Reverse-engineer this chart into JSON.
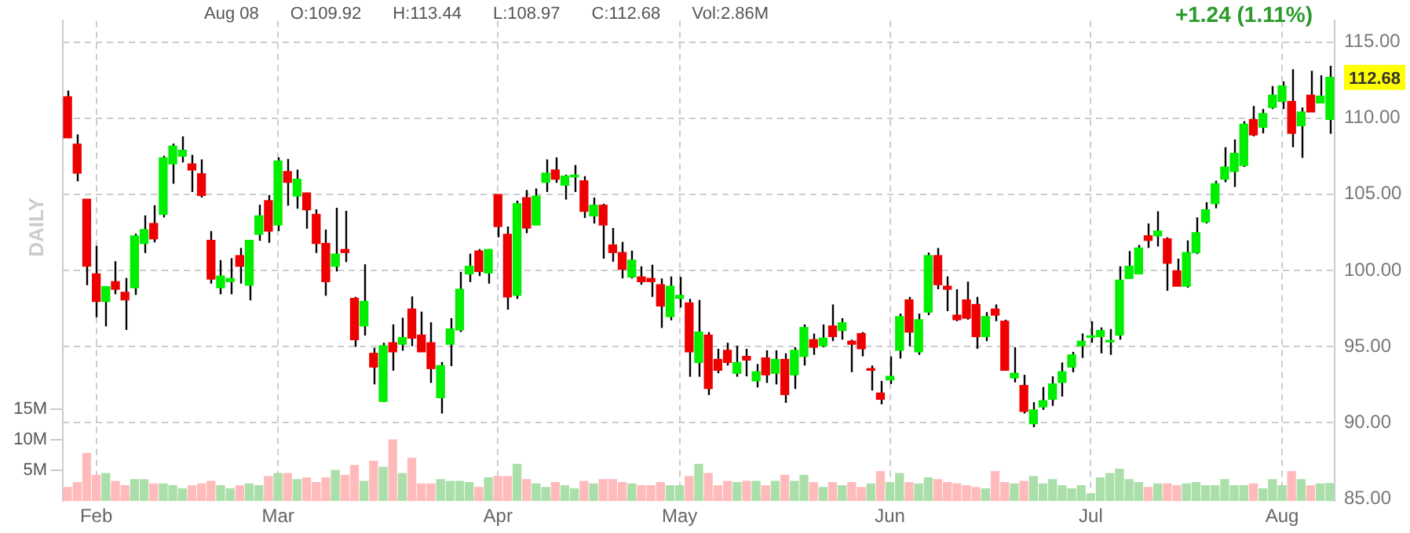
{
  "chart_data": {
    "type": "candlestick",
    "annotations": [
      "Aug 08",
      "O:109.92",
      "H:113.44",
      "L:108.97",
      "C:112.68",
      "Vol:2.86M",
      "+1.24 (1.11%)",
      "DAILY",
      "112.68"
    ],
    "categories": [
      null,
      null,
      null,
      "Feb",
      null,
      null,
      null,
      null,
      null,
      null,
      null,
      null,
      null,
      null,
      null,
      null,
      null,
      null,
      null,
      null,
      null,
      null,
      "Mar",
      null,
      null,
      null,
      null,
      null,
      null,
      null,
      null,
      null,
      null,
      null,
      null,
      null,
      null,
      null,
      null,
      null,
      null,
      null,
      null,
      null,
      null,
      "Apr",
      null,
      null,
      null,
      null,
      null,
      null,
      null,
      null,
      null,
      null,
      null,
      null,
      null,
      null,
      null,
      null,
      null,
      null,
      "May",
      null,
      null,
      null,
      null,
      null,
      null,
      null,
      null,
      null,
      null,
      null,
      null,
      null,
      null,
      null,
      null,
      null,
      null,
      null,
      null,
      null,
      "Jun",
      null,
      null,
      null,
      null,
      null,
      null,
      null,
      null,
      null,
      null,
      null,
      null,
      null,
      null,
      null,
      null,
      null,
      null,
      null,
      null,
      "Jul",
      null,
      null,
      null,
      null,
      null,
      null,
      null,
      null,
      null,
      null,
      null,
      null,
      null,
      null,
      null,
      null,
      null,
      null,
      null,
      "Aug",
      null,
      null,
      null,
      null,
      null
    ],
    "ohlc": [
      [
        111.4,
        111.81,
        108.7,
        108.7
      ],
      [
        108.29,
        108.93,
        105.85,
        106.39
      ],
      [
        104.68,
        104.68,
        99.03,
        100.27
      ],
      [
        99.77,
        101.61,
        96.92,
        97.96
      ],
      [
        97.96,
        98.93,
        96.32,
        98.93
      ],
      [
        99.26,
        100.6,
        98.43,
        98.76
      ],
      [
        98.56,
        99.5,
        96.09,
        98.06
      ],
      [
        98.86,
        102.41,
        98.39,
        102.27
      ],
      [
        101.77,
        103.61,
        101.14,
        102.68
      ],
      [
        103.08,
        104.28,
        101.84,
        102.07
      ],
      [
        103.68,
        107.53,
        103.48,
        107.39
      ],
      [
        106.99,
        108.33,
        105.69,
        108.16
      ],
      [
        107.49,
        108.8,
        107.09,
        107.89
      ],
      [
        106.99,
        107.59,
        105.15,
        106.59
      ],
      [
        106.35,
        107.29,
        104.78,
        104.92
      ],
      [
        101.97,
        102.58,
        99.13,
        99.43
      ],
      [
        98.86,
        100.67,
        98.43,
        99.63
      ],
      [
        99.26,
        100.8,
        98.43,
        99.47
      ],
      [
        100.97,
        101.47,
        99.13,
        100.27
      ],
      [
        99.03,
        101.97,
        98.03,
        101.97
      ],
      [
        102.37,
        104.31,
        101.94,
        103.58
      ],
      [
        104.58,
        104.95,
        101.81,
        102.58
      ],
      [
        102.98,
        107.42,
        102.58,
        107.19
      ],
      [
        106.49,
        107.32,
        104.25,
        105.79
      ],
      [
        104.88,
        106.62,
        104.05,
        105.99
      ],
      [
        105.08,
        105.08,
        102.74,
        103.98
      ],
      [
        103.68,
        104.01,
        101.14,
        101.77
      ],
      [
        101.77,
        102.68,
        98.33,
        99.26
      ],
      [
        100.27,
        104.11,
        99.93,
        101.07
      ],
      [
        101.37,
        103.91,
        100.54,
        101.17
      ],
      [
        98.16,
        98.26,
        94.98,
        95.45
      ],
      [
        96.35,
        100.4,
        95.72,
        97.96
      ],
      [
        94.55,
        94.92,
        92.51,
        93.65
      ],
      [
        91.4,
        95.25,
        91.34,
        95.05
      ],
      [
        95.25,
        96.45,
        93.41,
        94.65
      ],
      [
        95.15,
        96.89,
        94.72,
        95.59
      ],
      [
        97.46,
        98.29,
        95.02,
        95.55
      ],
      [
        95.75,
        97.29,
        94.65,
        94.65
      ],
      [
        95.25,
        96.59,
        92.61,
        93.55
      ],
      [
        91.64,
        93.98,
        90.6,
        93.75
      ],
      [
        95.15,
        96.86,
        93.71,
        96.15
      ],
      [
        96.09,
        99.9,
        95.95,
        98.76
      ],
      [
        99.77,
        101.1,
        99.23,
        100.27
      ],
      [
        101.27,
        101.4,
        99.63,
        99.93
      ],
      [
        99.83,
        101.4,
        99.13,
        101.37
      ],
      [
        104.98,
        104.98,
        102.17,
        102.88
      ],
      [
        102.37,
        102.88,
        97.42,
        98.26
      ],
      [
        98.36,
        104.58,
        98.13,
        104.38
      ],
      [
        104.78,
        105.28,
        102.44,
        102.78
      ],
      [
        102.98,
        105.38,
        102.98,
        104.88
      ],
      [
        105.79,
        107.29,
        105.15,
        106.39
      ],
      [
        106.59,
        107.42,
        105.75,
        105.99
      ],
      [
        105.59,
        106.29,
        104.65,
        106.19
      ],
      [
        106.15,
        106.92,
        105.15,
        106.25
      ],
      [
        105.89,
        106.19,
        103.44,
        103.88
      ],
      [
        103.58,
        104.78,
        103.08,
        104.28
      ],
      [
        104.28,
        104.38,
        100.77,
        102.98
      ],
      [
        101.67,
        102.78,
        100.57,
        101.17
      ],
      [
        101.17,
        101.87,
        99.47,
        100.07
      ],
      [
        99.57,
        101.3,
        99.47,
        100.67
      ],
      [
        99.57,
        100.27,
        99.06,
        99.26
      ],
      [
        99.47,
        100.37,
        98.26,
        99.26
      ],
      [
        99.06,
        99.47,
        96.22,
        97.66
      ],
      [
        96.96,
        99.6,
        96.72,
        98.96
      ],
      [
        98.16,
        99.57,
        97.56,
        98.36
      ],
      [
        97.86,
        98.13,
        93.01,
        94.65
      ],
      [
        93.95,
        98.06,
        93.01,
        95.95
      ],
      [
        95.75,
        95.95,
        91.81,
        92.24
      ],
      [
        94.15,
        94.85,
        93.24,
        93.44
      ],
      [
        94.75,
        95.25,
        93.75,
        93.95
      ],
      [
        93.24,
        95.05,
        93.01,
        93.95
      ],
      [
        94.35,
        94.85,
        93.04,
        94.11
      ],
      [
        92.74,
        93.85,
        92.31,
        93.34
      ],
      [
        94.25,
        94.75,
        92.61,
        93.14
      ],
      [
        93.24,
        94.75,
        92.51,
        94.15
      ],
      [
        94.15,
        94.55,
        91.3,
        91.84
      ],
      [
        93.14,
        94.95,
        92.21,
        94.75
      ],
      [
        94.35,
        96.45,
        93.75,
        96.25
      ],
      [
        95.45,
        95.85,
        94.45,
        94.95
      ],
      [
        95.05,
        96.45,
        94.95,
        95.55
      ],
      [
        96.35,
        97.76,
        95.35,
        95.65
      ],
      [
        96.05,
        96.86,
        95.45,
        96.56
      ],
      [
        95.35,
        95.45,
        93.31,
        95.15
      ],
      [
        95.85,
        95.95,
        94.35,
        94.85
      ],
      [
        93.55,
        93.75,
        92.11,
        93.44
      ],
      [
        91.94,
        92.74,
        91.2,
        91.54
      ],
      [
        92.81,
        94.35,
        92.54,
        93.04
      ],
      [
        94.75,
        97.16,
        94.21,
        96.96
      ],
      [
        98.06,
        98.26,
        95.02,
        95.95
      ],
      [
        94.65,
        97.16,
        94.45,
        96.76
      ],
      [
        97.26,
        101.17,
        97.06,
        100.97
      ],
      [
        100.97,
        101.47,
        98.76,
        99.06
      ],
      [
        98.96,
        99.6,
        97.32,
        98.76
      ],
      [
        97.06,
        98.76,
        96.66,
        96.76
      ],
      [
        98.06,
        99.26,
        96.76,
        96.86
      ],
      [
        97.76,
        98.26,
        94.85,
        95.65
      ],
      [
        95.65,
        97.26,
        95.35,
        96.96
      ],
      [
        97.46,
        97.76,
        96.66,
        97.06
      ],
      [
        96.66,
        96.76,
        93.44,
        93.44
      ],
      [
        92.94,
        94.95,
        92.64,
        93.24
      ],
      [
        92.44,
        93.14,
        90.6,
        90.74
      ],
      [
        89.93,
        91.34,
        89.7,
        90.84
      ],
      [
        91.04,
        92.34,
        90.84,
        91.44
      ],
      [
        91.54,
        93.04,
        91.1,
        92.54
      ],
      [
        92.64,
        93.95,
        91.71,
        93.34
      ],
      [
        93.65,
        94.65,
        93.31,
        94.45
      ],
      [
        95.05,
        95.85,
        94.25,
        95.35
      ],
      [
        95.6,
        96.66,
        95.25,
        95.7
      ],
      [
        95.65,
        96.25,
        94.55,
        96.05
      ],
      [
        95.3,
        96.15,
        94.45,
        95.4
      ],
      [
        95.75,
        100.27,
        95.45,
        99.36
      ],
      [
        99.47,
        101.27,
        99.47,
        100.27
      ],
      [
        99.77,
        101.67,
        99.77,
        101.47
      ],
      [
        102.27,
        103.08,
        101.47,
        101.97
      ],
      [
        102.27,
        103.88,
        101.57,
        102.58
      ],
      [
        102.07,
        102.17,
        98.66,
        100.47
      ],
      [
        99.97,
        100.77,
        98.96,
        98.96
      ],
      [
        98.96,
        101.97,
        98.86,
        101.17
      ],
      [
        101.17,
        103.48,
        101.07,
        102.48
      ],
      [
        103.18,
        104.48,
        103.08,
        103.98
      ],
      [
        104.38,
        105.89,
        104.08,
        105.69
      ],
      [
        105.99,
        108.09,
        105.79,
        106.79
      ],
      [
        106.49,
        108.6,
        105.48,
        107.69
      ],
      [
        106.89,
        109.8,
        106.79,
        109.6
      ],
      [
        109.9,
        110.8,
        108.8,
        108.9
      ],
      [
        109.4,
        110.6,
        109.0,
        110.3
      ],
      [
        110.7,
        112.11,
        110.6,
        111.51
      ],
      [
        111.1,
        112.41,
        110.6,
        112.11
      ],
      [
        111.1,
        113.21,
        108.09,
        109.0
      ],
      [
        109.5,
        110.7,
        107.39,
        110.4
      ],
      [
        111.51,
        113.11,
        110.4,
        110.4
      ],
      [
        111.0,
        112.81,
        111.0,
        111.44
      ],
      [
        109.92,
        113.44,
        108.97,
        112.68
      ]
    ],
    "series": [
      {
        "type": "bar",
        "axis": "y2",
        "values": [
          2.2,
          3.0,
          7.8,
          4.2,
          4.5,
          3.2,
          2.5,
          3.5,
          3.5,
          2.8,
          2.8,
          2.5,
          2.0,
          2.5,
          2.8,
          3.2,
          2.5,
          2.0,
          2.5,
          2.8,
          2.5,
          4.0,
          4.5,
          4.5,
          3.5,
          3.8,
          3.0,
          3.8,
          5.0,
          4.2,
          5.8,
          3.2,
          6.5,
          5.5,
          10.0,
          4.5,
          7.0,
          2.8,
          2.8,
          3.5,
          3.2,
          3.2,
          3.0,
          2.2,
          3.8,
          4.0,
          4.0,
          6.0,
          3.5,
          2.8,
          2.2,
          3.0,
          2.5,
          2.0,
          3.2,
          2.8,
          3.5,
          3.5,
          3.0,
          2.8,
          2.5,
          2.5,
          3.0,
          2.5,
          2.5,
          4.0,
          6.0,
          4.5,
          2.5,
          3.2,
          3.0,
          3.2,
          3.2,
          2.5,
          3.2,
          4.2,
          3.2,
          4.2,
          3.0,
          2.2,
          3.0,
          2.5,
          3.0,
          2.2,
          2.8,
          4.8,
          3.0,
          4.5,
          3.0,
          2.8,
          3.8,
          3.5,
          3.0,
          2.8,
          2.5,
          2.2,
          2.0,
          4.8,
          3.0,
          2.8,
          3.2,
          4.0,
          2.8,
          3.5,
          2.5,
          2.0,
          2.5,
          1.2,
          3.8,
          4.5,
          5.2,
          3.5,
          3.0,
          2.2,
          2.8,
          2.8,
          2.5,
          2.8,
          3.0,
          2.5,
          2.5,
          3.5,
          2.5,
          2.5,
          2.8,
          2.0,
          3.5,
          2.5,
          4.8,
          3.5,
          2.5,
          2.8,
          2.86
        ],
        "colors": [
          "#ffbbbb",
          "#ffbbbb",
          "#ffbbbb",
          "#ffbbbb",
          "#aadfaa",
          "#ffbbbb",
          "#ffbbbb",
          "#aadfaa",
          "#aadfaa",
          "#ffbbbb",
          "#aadfaa",
          "#aadfaa",
          "#aadfaa",
          "#ffbbbb",
          "#ffbbbb",
          "#ffbbbb",
          "#aadfaa",
          "#aadfaa",
          "#ffbbbb",
          "#aadfaa",
          "#aadfaa",
          "#ffbbbb",
          "#aadfaa",
          "#ffbbbb",
          "#aadfaa",
          "#ffbbbb",
          "#ffbbbb",
          "#ffbbbb",
          "#aadfaa",
          "#ffbbbb",
          "#ffbbbb",
          "#aadfaa",
          "#ffbbbb",
          "#aadfaa",
          "#ffbbbb",
          "#aadfaa",
          "#ffbbbb",
          "#ffbbbb",
          "#ffbbbb",
          "#aadfaa",
          "#aadfaa",
          "#aadfaa",
          "#aadfaa",
          "#ffbbbb",
          "#aadfaa",
          "#ffbbbb",
          "#ffbbbb",
          "#aadfaa",
          "#ffbbbb",
          "#aadfaa",
          "#aadfaa",
          "#ffbbbb",
          "#aadfaa",
          "#aadfaa",
          "#ffbbbb",
          "#aadfaa",
          "#ffbbbb",
          "#ffbbbb",
          "#ffbbbb",
          "#aadfaa",
          "#ffbbbb",
          "#ffbbbb",
          "#ffbbbb",
          "#aadfaa",
          "#aadfaa",
          "#ffbbbb",
          "#aadfaa",
          "#ffbbbb",
          "#ffbbbb",
          "#ffbbbb",
          "#aadfaa",
          "#ffbbbb",
          "#aadfaa",
          "#ffbbbb",
          "#aadfaa",
          "#ffbbbb",
          "#aadfaa",
          "#aadfaa",
          "#ffbbbb",
          "#aadfaa",
          "#ffbbbb",
          "#aadfaa",
          "#ffbbbb",
          "#ffbbbb",
          "#aadfaa",
          "#ffbbbb",
          "#aadfaa",
          "#aadfaa",
          "#ffbbbb",
          "#aadfaa",
          "#aadfaa",
          "#ffbbbb",
          "#ffbbbb",
          "#ffbbbb",
          "#ffbbbb",
          "#ffbbbb",
          "#aadfaa",
          "#ffbbbb",
          "#ffbbbb",
          "#aadfaa",
          "#ffbbbb",
          "#aadfaa",
          "#aadfaa",
          "#aadfaa",
          "#aadfaa",
          "#aadfaa",
          "#aadfaa",
          "#aadfaa",
          "#aadfaa",
          "#aadfaa",
          "#aadfaa",
          "#aadfaa",
          "#aadfaa",
          "#ffbbbb",
          "#aadfaa",
          "#ffbbbb",
          "#ffbbbb",
          "#aadfaa",
          "#aadfaa",
          "#aadfaa",
          "#aadfaa",
          "#aadfaa",
          "#aadfaa",
          "#aadfaa",
          "#ffbbbb",
          "#aadfaa",
          "#aadfaa",
          "#aadfaa",
          "#ffbbbb",
          "#aadfaa",
          "#ffbbbb",
          "#aadfaa",
          "#aadfaa"
        ]
      }
    ],
    "ylim": [
      84.85,
      116.4
    ],
    "yticks": [
      {
        "value": 85,
        "label": "85.00"
      },
      {
        "value": 90,
        "label": "90.00"
      },
      {
        "value": 95,
        "label": "95.00"
      },
      {
        "value": 100,
        "label": "100.00"
      },
      {
        "value": 105,
        "label": "105.00"
      },
      {
        "value": 110,
        "label": "110.00"
      },
      {
        "value": 115,
        "label": "115.00"
      }
    ],
    "y2lim": [
      0,
      78.5
    ],
    "y2ticks": [
      {
        "value": 5,
        "label": "5M"
      },
      {
        "value": 10,
        "label": "10M"
      },
      {
        "value": 15,
        "label": "15M"
      }
    ],
    "grid": true
  }
}
